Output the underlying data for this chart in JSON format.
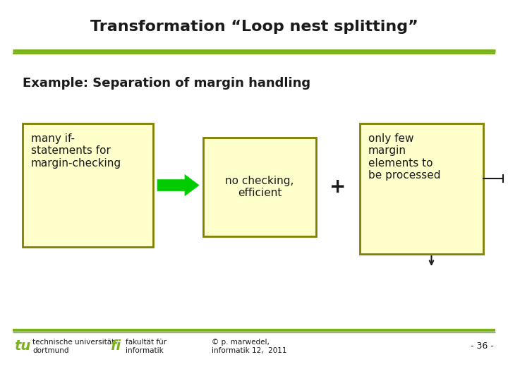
{
  "title": "Transformation “Loop nest splitting”",
  "subtitle": "Example: Separation of margin handling",
  "box1_text": "many if-\nstatements for\nmargin-checking",
  "box2_text": "no checking,\nefficient",
  "box3_text": "only few\nmargin\nelements to\nbe processed",
  "plus_symbol": "+",
  "footer_left1": "technische universität",
  "footer_left2": "dortmund",
  "footer_mid1": "fakultät für",
  "footer_mid2": "informatik",
  "footer_right1": "© p. marwedel,",
  "footer_right2": "informatik 12,  2011",
  "footer_page": "- 36 -",
  "title_color": "#1a1a1a",
  "green_line_color": "#7ab318",
  "box_fill_color": "#ffffcc",
  "box_border_color": "#808000",
  "arrow_color": "#00cc00",
  "text_color": "#1a1a1a",
  "background_color": "#ffffff"
}
